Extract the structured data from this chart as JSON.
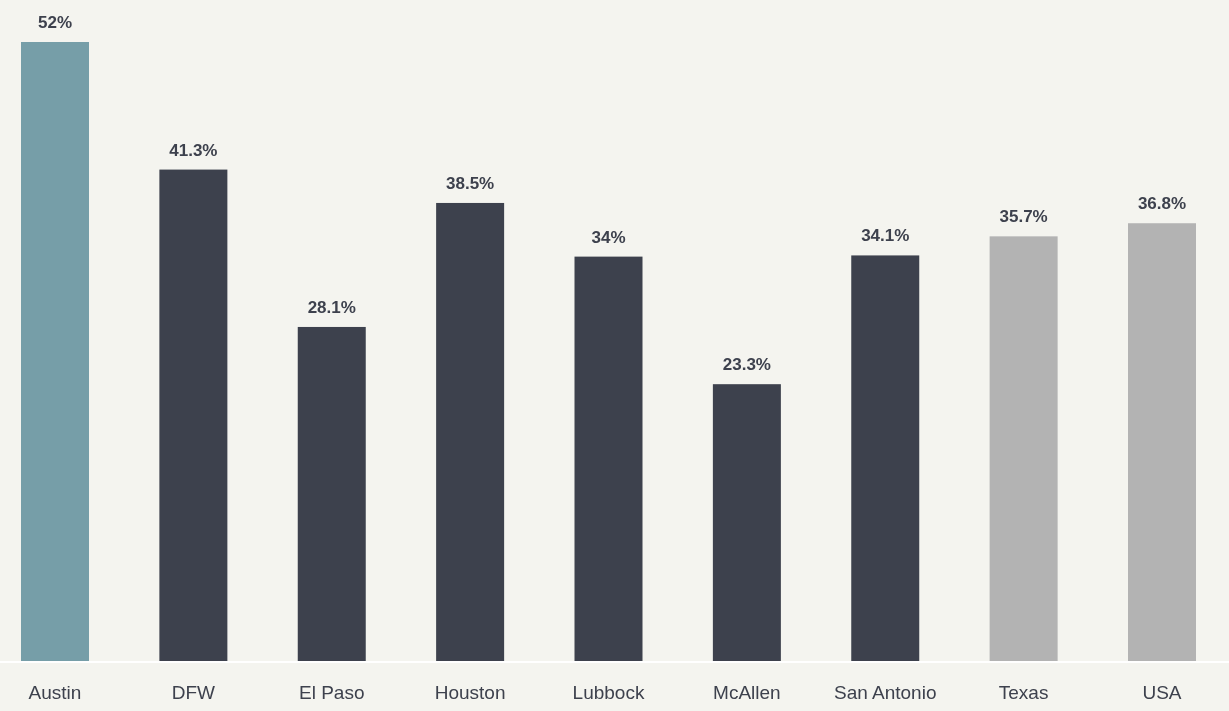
{
  "chart_data": {
    "type": "bar",
    "categories": [
      "Austin",
      "DFW",
      "El Paso",
      "Houston",
      "Lubbock",
      "McAllen",
      "San Antonio",
      "Texas",
      "USA"
    ],
    "values": [
      52,
      41.3,
      28.1,
      38.5,
      34,
      23.3,
      34.1,
      35.7,
      36.8
    ],
    "colors": [
      "#769ea8",
      "#3d414d",
      "#3d414d",
      "#3d414d",
      "#3d414d",
      "#3d414d",
      "#3d414d",
      "#b3b3b3",
      "#b3b3b3"
    ],
    "value_labels": [
      "52%",
      "41.3%",
      "28.1%",
      "38.5%",
      "34%",
      "23.3%",
      "34.1%",
      "35.7%",
      "36.8%"
    ]
  }
}
